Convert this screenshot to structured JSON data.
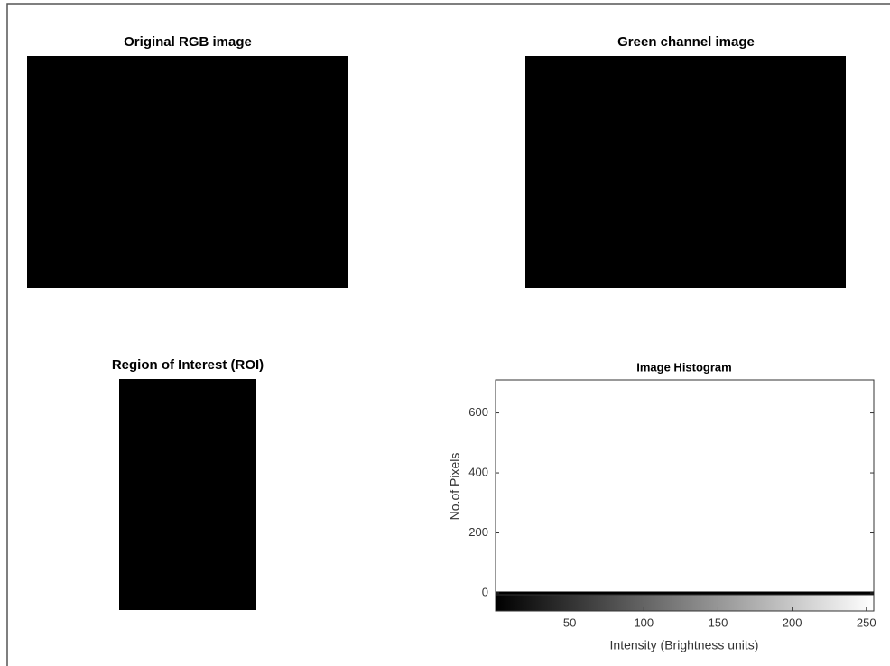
{
  "images": [
    {
      "title": "Original RGB image"
    },
    {
      "title": "Green channel image"
    },
    {
      "title": "Region of Interest (ROI)"
    }
  ],
  "chart_data": {
    "type": "histogram",
    "title": "Image Histogram",
    "x_label": "Intensity (Brightness units)",
    "y_label": "No.of Pixels",
    "xlim": [
      0,
      255
    ],
    "ylim": [
      0,
      710
    ],
    "xticks": [
      50,
      100,
      150,
      200,
      250
    ],
    "yticks": [
      0,
      200,
      400,
      600
    ]
  }
}
